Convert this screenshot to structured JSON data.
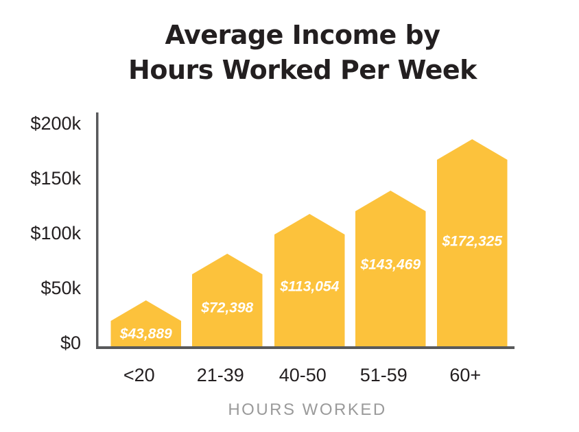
{
  "chart_data": {
    "type": "bar",
    "title": "Average Income by Hours Worked Per Week",
    "title_lines": [
      "Average Income by",
      "Hours Worked Per Week"
    ],
    "xlabel": "HOURS WORKED",
    "ylabel": "",
    "categories": [
      "<20",
      "21-39",
      "40-50",
      "51-59",
      "60+"
    ],
    "values": [
      43889,
      72398,
      113054,
      143469,
      172325
    ],
    "value_labels": [
      "$43,889",
      "$72,398",
      "$113,054",
      "$143,469",
      "$172,325"
    ],
    "yticks": [
      0,
      50000,
      100000,
      150000,
      200000
    ],
    "ytick_labels": [
      "$0",
      "$50k",
      "$100k",
      "$150k",
      "$200k"
    ],
    "ylim": [
      0,
      200000
    ],
    "grid": false,
    "legend_position": "none",
    "bar_shape": "pointed-top-pentagon",
    "colors": {
      "background": "#FFFFFF",
      "bar_fill": "#FCC23C",
      "bar_value_text": "#FFFFFF",
      "axis_line": "#58595B",
      "tick_text": "#231F20",
      "title_text": "#231F20",
      "xlabel_text": "#9A9A9A"
    }
  }
}
